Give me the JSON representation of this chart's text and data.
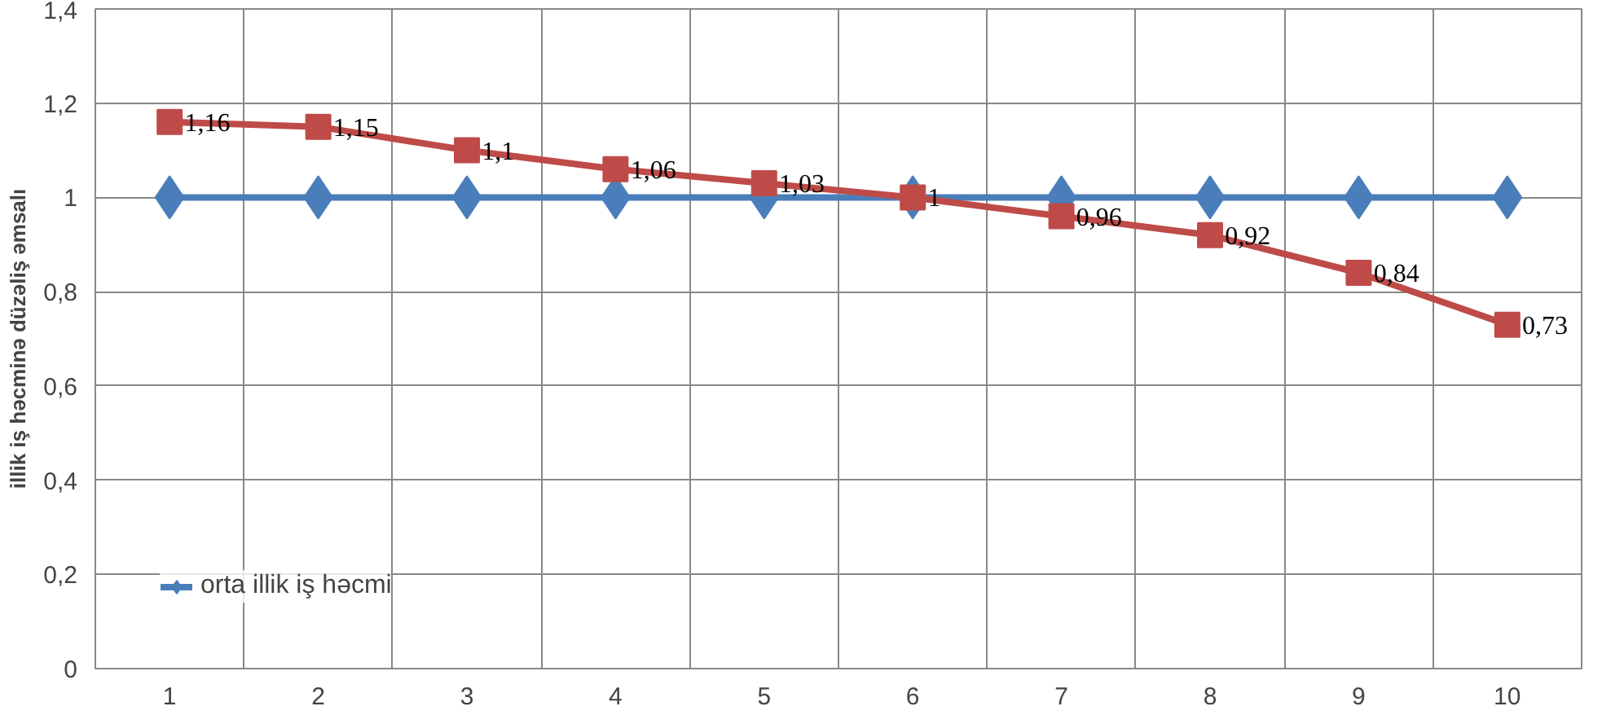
{
  "chart_data": {
    "type": "line",
    "ylabel": "illik iş həcminə düzəliş əmsalı",
    "categories": [
      "1",
      "2",
      "3",
      "4",
      "5",
      "6",
      "7",
      "8",
      "9",
      "10"
    ],
    "series": [
      {
        "name": "orta illik iş həcmi",
        "color": "#4a7ebb",
        "marker": "diamond",
        "values": [
          1,
          1,
          1,
          1,
          1,
          1,
          1,
          1,
          1,
          1
        ]
      },
      {
        "color": "#be4b48",
        "marker": "square",
        "values": [
          1.16,
          1.15,
          1.1,
          1.06,
          1.03,
          1,
          0.96,
          0.92,
          0.84,
          0.73
        ],
        "value_labels": [
          "1,16",
          "1,15",
          "1,1",
          "1,06",
          "1,03",
          "1",
          "0,96",
          "0,92",
          "0,84",
          "0,73"
        ]
      }
    ],
    "ylim": [
      0,
      1.4
    ],
    "yticks": [
      {
        "value": 0,
        "label": "0"
      },
      {
        "value": 0.2,
        "label": "0,2"
      },
      {
        "value": 0.4,
        "label": "0,4"
      },
      {
        "value": 0.6,
        "label": "0,6"
      },
      {
        "value": 0.8,
        "label": "0,8"
      },
      {
        "value": 1,
        "label": "1"
      },
      {
        "value": 1.2,
        "label": "1,2"
      },
      {
        "value": 1.4,
        "label": "1,4"
      }
    ],
    "grid": true,
    "legend": "bottom left"
  }
}
